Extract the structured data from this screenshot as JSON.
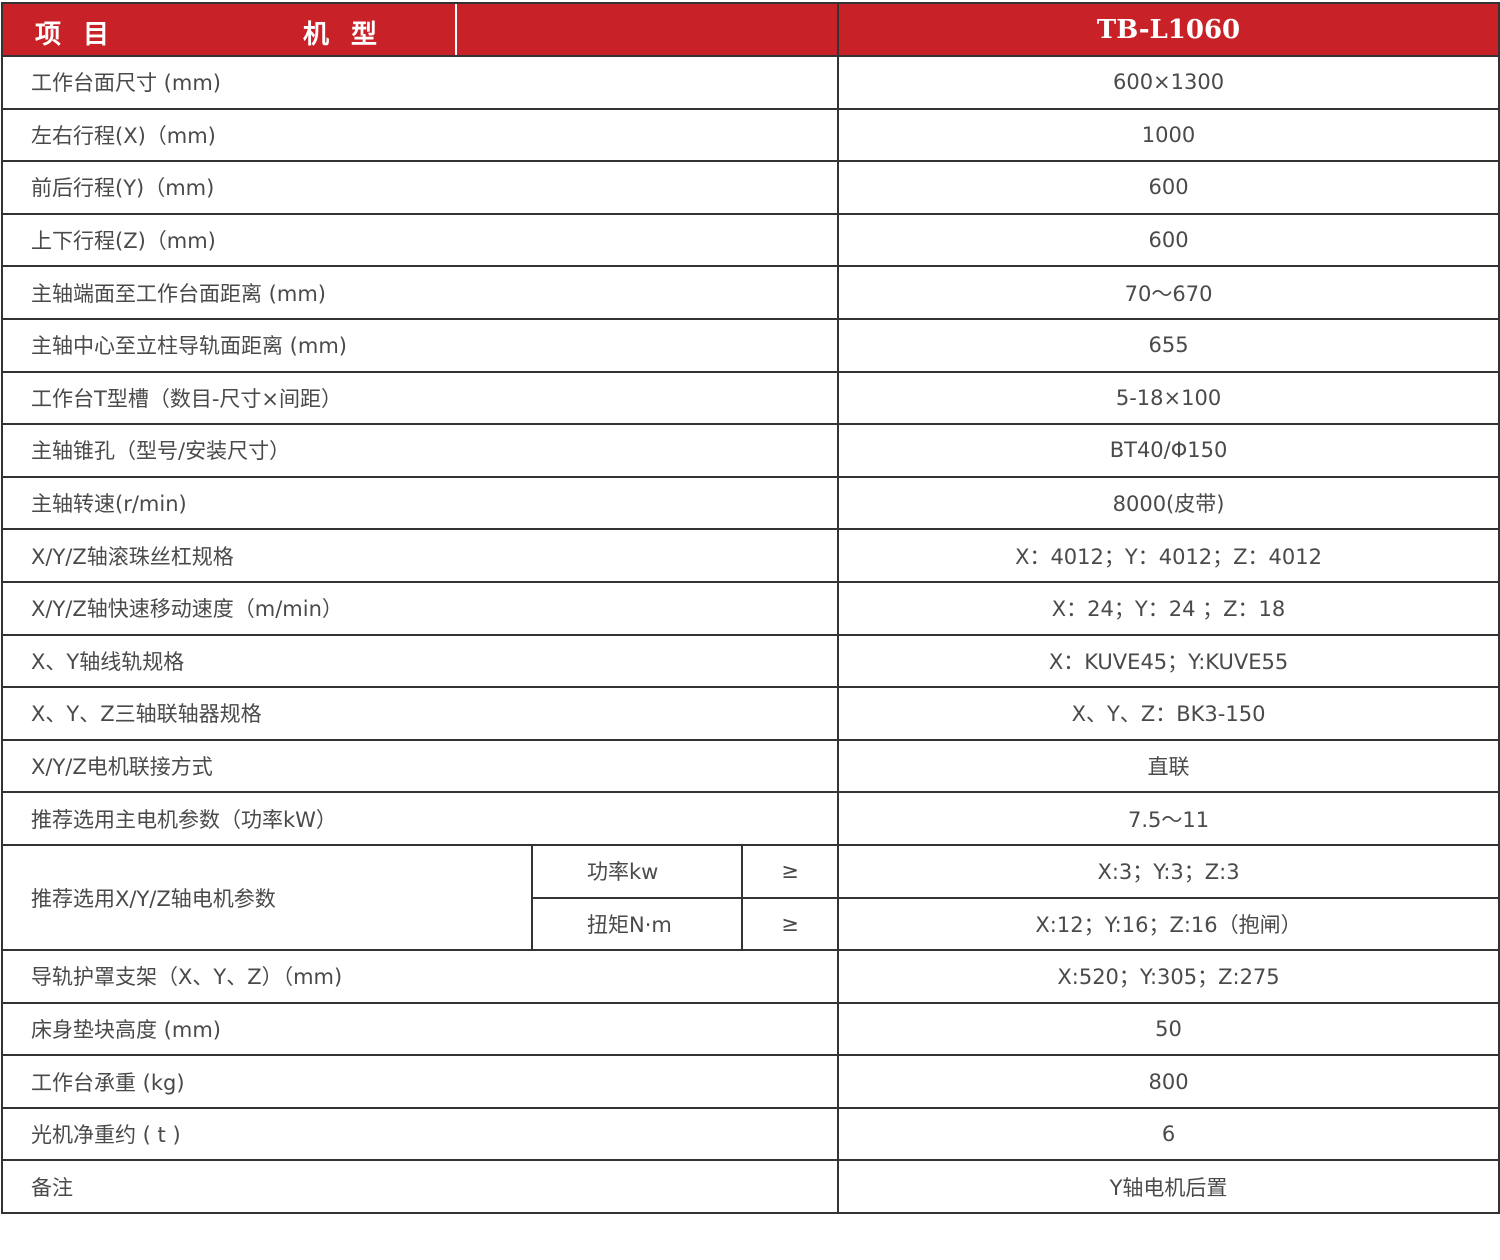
{
  "header": {
    "item_label": "项目",
    "model_label": "机型",
    "model": "TB-L1060"
  },
  "colors": {
    "header_bg": "#c82127",
    "header_text": "#ffffff",
    "border": "#333333"
  },
  "rows_before": [
    {
      "label": "工作台面尺寸 (mm)",
      "value": "600×1300"
    },
    {
      "label": "左右行程(X)（mm)",
      "value": "1000"
    },
    {
      "label": "前后行程(Y)（mm)",
      "value": "600"
    },
    {
      "label": "上下行程(Z)（mm)",
      "value": "600"
    },
    {
      "label": "主轴端面至工作台面距离 (mm)",
      "value": "70～670"
    },
    {
      "label": "主轴中心至立柱导轨面距离 (mm)",
      "value": "655"
    },
    {
      "label": "工作台T型槽（数目-尺寸×间距）",
      "value": "5-18×100"
    },
    {
      "label": "主轴锥孔（型号/安装尺寸）",
      "value": "BT40/Φ150"
    },
    {
      "label": "主轴转速(r/min)",
      "value": "8000(皮带)"
    },
    {
      "label": "X/Y/Z轴滚珠丝杠规格",
      "value": "X：4012；Y：4012；Z：4012"
    },
    {
      "label": "X/Y/Z轴快速移动速度（m/min）",
      "value": "X：24；Y：24 ；Z：18"
    },
    {
      "label": "X、Y轴线轨规格",
      "value": "X：KUVE45；Y:KUVE55"
    },
    {
      "label": "X、Y、Z三轴联轴器规格",
      "value": "X、Y、Z：BK3-150"
    },
    {
      "label": "X/Y/Z电机联接方式",
      "value": "直联"
    },
    {
      "label": "推荐选用主电机参数（功率kW）",
      "value": "7.5～11"
    }
  ],
  "split_row": {
    "label": "推荐选用X/Y/Z轴电机参数",
    "sub": [
      {
        "label": "功率kw",
        "op": "≥",
        "value": "X:3；Y:3；Z:3"
      },
      {
        "label": "扭矩N·m",
        "op": "≥",
        "value": "X:12；Y:16；Z:16（抱闸）"
      }
    ]
  },
  "rows_after": [
    {
      "label": "导轨护罩支架（X、Y、Z）（mm)",
      "value": "X:520；Y:305；Z:275"
    },
    {
      "label": "床身垫块高度 (mm)",
      "value": "50"
    },
    {
      "label": "工作台承重 (kg)",
      "value": "800"
    },
    {
      "label": "光机净重约 ( t )",
      "value": "6"
    },
    {
      "label": "备注",
      "value": "Y轴电机后置"
    }
  ]
}
